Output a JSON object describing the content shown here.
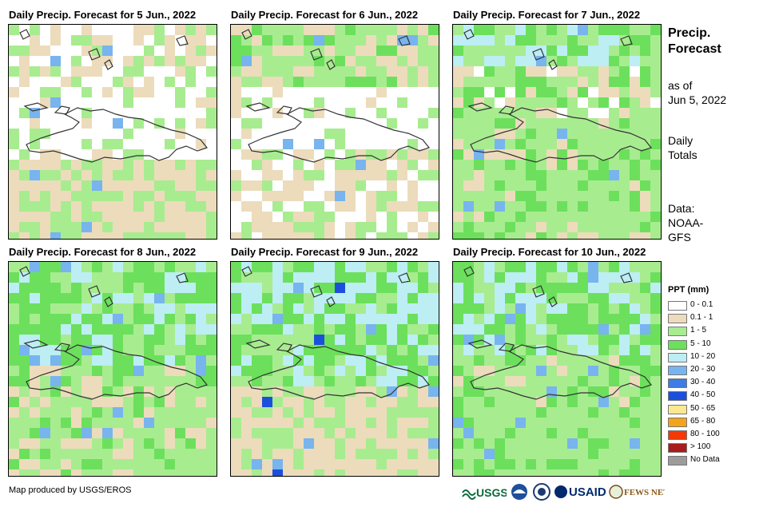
{
  "panels": [
    {
      "title": "Daily Precip. Forecast for 5 Jun., 2022"
    },
    {
      "title": "Daily Precip. Forecast for 6 Jun., 2022"
    },
    {
      "title": "Daily Precip. Forecast for 7 Jun., 2022"
    },
    {
      "title": "Daily Precip. Forecast for 8 Jun., 2022"
    },
    {
      "title": "Daily Precip. Forecast for 9 Jun., 2022"
    },
    {
      "title": "Daily Precip. Forecast for 10 Jun., 2022"
    }
  ],
  "sidebar": {
    "title_line1": "Precip.",
    "title_line2": "Forecast",
    "asof_line1": "as of",
    "asof_line2": "Jun 5, 2022",
    "totals_line1": "Daily",
    "totals_line2": "Totals",
    "data_line1": "Data:",
    "data_line2": "NOAA-",
    "data_line3": "GFS"
  },
  "legend": {
    "title": "PPT (mm)",
    "items": [
      {
        "label": "0 - 0.1",
        "color": "#ffffff"
      },
      {
        "label": "0.1 - 1",
        "color": "#ecdcbc"
      },
      {
        "label": "1 - 5",
        "color": "#a8ec90"
      },
      {
        "label": "5 - 10",
        "color": "#6ce05c"
      },
      {
        "label": "10 - 20",
        "color": "#bceef4"
      },
      {
        "label": "20 - 30",
        "color": "#78b4ee"
      },
      {
        "label": "30 - 40",
        "color": "#3c7ce4"
      },
      {
        "label": "40 - 50",
        "color": "#1c50dc"
      },
      {
        "label": "50 - 65",
        "color": "#fce890"
      },
      {
        "label": "65 - 80",
        "color": "#f4a418"
      },
      {
        "label": "80 - 100",
        "color": "#f43808"
      },
      {
        "label": "> 100",
        "color": "#a81c1c"
      },
      {
        "label": "No Data",
        "color": "#9c9c9c"
      }
    ]
  },
  "footer": {
    "credit": "Map produced by USGS/EROS"
  },
  "logos": {
    "usgs": "USGS",
    "usaid": "USAID",
    "fewsnet": "FEWS NET"
  }
}
